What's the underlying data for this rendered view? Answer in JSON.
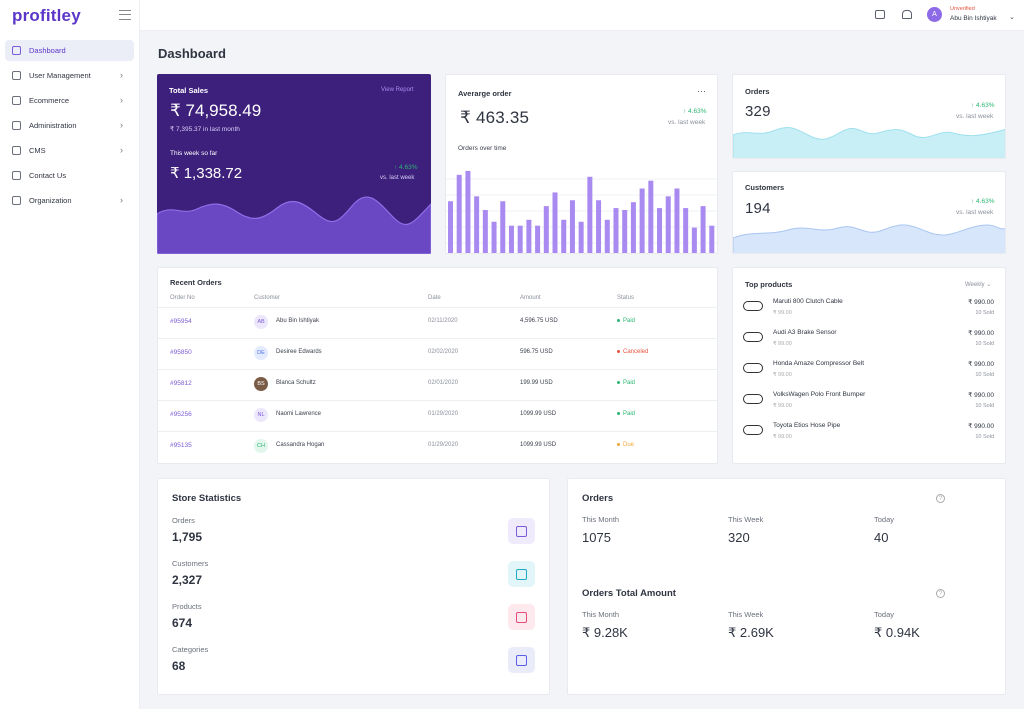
{
  "app": {
    "logo": "profitley"
  },
  "sidebar": {
    "items": [
      {
        "label": "Dashboard",
        "chevron": false
      },
      {
        "label": "User Management",
        "chevron": true
      },
      {
        "label": "Ecommerce",
        "chevron": true
      },
      {
        "label": "Administration",
        "chevron": true
      },
      {
        "label": "CMS",
        "chevron": true
      },
      {
        "label": "Contact Us",
        "chevron": false
      },
      {
        "label": "Organization",
        "chevron": true
      }
    ]
  },
  "user": {
    "initial": "A",
    "status": "Unverified",
    "name": "Abu Bin Ishtiyak"
  },
  "page_title": "Dashboard",
  "total_sales": {
    "title": "Total Sales",
    "link": "View Report",
    "value": "₹ 74,958.49",
    "last_month": "₹ 7,395.37 in last month",
    "week_label": "This week so far",
    "week_value": "₹ 1,338.72",
    "change": "↑ 4.63%",
    "change_label": "vs. last week"
  },
  "avg_order": {
    "title": "Averarge order",
    "value": "₹ 463.35",
    "change": "↑ 4.63%",
    "change_label": "vs. last week",
    "subtitle": "Orders over time",
    "bars": [
      55,
      82,
      86,
      60,
      46,
      34,
      55,
      30,
      30,
      36,
      30,
      50,
      64,
      36,
      56,
      34,
      80,
      56,
      36,
      48,
      46,
      54,
      68,
      76,
      48,
      60,
      68,
      48,
      28,
      50,
      30
    ]
  },
  "orders_card": {
    "title": "Orders",
    "value": "329",
    "change": "↑ 4.63%",
    "change_label": "vs. last week"
  },
  "customers_card": {
    "title": "Customers",
    "value": "194",
    "change": "↑ 4.63%",
    "change_label": "vs. last week"
  },
  "recent_orders": {
    "title": "Recent Orders",
    "headers": [
      "Order No",
      "Customer",
      "Date",
      "Amount",
      "Status"
    ],
    "rows": [
      {
        "id": "#95954",
        "initials": "AB",
        "customer": "Abu Bin Ishtiyak",
        "date": "02/11/2020",
        "amount": "4,596.75 USD",
        "status": "Paid",
        "status_color": "#2bb673",
        "av_bg": "#ece7fb",
        "av_fg": "#7b5bd6"
      },
      {
        "id": "#95850",
        "initials": "DE",
        "customer": "Desiree Edwards",
        "date": "02/02/2020",
        "amount": "596.75 USD",
        "status": "Canceled",
        "status_color": "#e5533d",
        "av_bg": "#e4ebff",
        "av_fg": "#4f74e6"
      },
      {
        "id": "#95812",
        "initials": "BS",
        "customer": "Blanca Schultz",
        "date": "02/01/2020",
        "amount": "199.99 USD",
        "status": "Paid",
        "status_color": "#2bb673",
        "av_bg": "#7a5b46",
        "av_fg": "#fff"
      },
      {
        "id": "#95256",
        "initials": "NL",
        "customer": "Naomi Lawrence",
        "date": "01/29/2020",
        "amount": "1099.99 USD",
        "status": "Paid",
        "status_color": "#2bb673",
        "av_bg": "#ece7fb",
        "av_fg": "#7b5bd6"
      },
      {
        "id": "#95135",
        "initials": "CH",
        "customer": "Cassandra Hogan",
        "date": "01/29/2020",
        "amount": "1099.99 USD",
        "status": "Due",
        "status_color": "#f4a73b",
        "av_bg": "#e3f6ec",
        "av_fg": "#2bb673"
      }
    ]
  },
  "top_products": {
    "title": "Top products",
    "filter": "Weekly",
    "items": [
      {
        "name": "Maruti 800 Clutch Cable",
        "sub": "₹ 99.00",
        "price": "₹ 990.00",
        "sold": "10 Sold"
      },
      {
        "name": "Audi A3 Brake Sensor",
        "sub": "₹ 99.00",
        "price": "₹ 990.00",
        "sold": "10 Sold"
      },
      {
        "name": "Honda Amaze Compressor Belt",
        "sub": "₹ 99.00",
        "price": "₹ 990.00",
        "sold": "10 Sold"
      },
      {
        "name": "VolksWagen Polo Front Bumper",
        "sub": "₹ 99.00",
        "price": "₹ 990.00",
        "sold": "10 Sold"
      },
      {
        "name": "Toyota Etios Hose Pipe",
        "sub": "₹ 99.00",
        "price": "₹ 990.00",
        "sold": "10 Sold"
      }
    ]
  },
  "store_stats": {
    "title": "Store Statistics",
    "items": [
      {
        "label": "Orders",
        "value": "1,795",
        "icon": "bag-icon",
        "bg": "#efeafc",
        "fg": "#7b5bd6"
      },
      {
        "label": "Customers",
        "value": "2,327",
        "icon": "users-icon",
        "bg": "#e2f6fa",
        "fg": "#21a9c9"
      },
      {
        "label": "Products",
        "value": "674",
        "icon": "box-icon",
        "bg": "#fde9ee",
        "fg": "#e64b79"
      },
      {
        "label": "Categories",
        "value": "68",
        "icon": "server-icon",
        "bg": "#ebecfa",
        "fg": "#5b5ee6"
      }
    ]
  },
  "orders_summary": {
    "title": "Orders",
    "cols": [
      {
        "label": "This Month",
        "value": "1075"
      },
      {
        "label": "This Week",
        "value": "320"
      },
      {
        "label": "Today",
        "value": "40"
      }
    ]
  },
  "orders_total": {
    "title": "Orders Total Amount",
    "cols": [
      {
        "label": "This Month",
        "value": "₹  9.28K"
      },
      {
        "label": "This Week",
        "value": "₹  2.69K"
      },
      {
        "label": "Today",
        "value": "₹  0.94K"
      }
    ]
  },
  "colors": {
    "accent": "#5b36c9",
    "bars": "#a98af0",
    "total_sales_bg": "#3d1f7c",
    "orders_wave": "#c9eff6",
    "customers_wave": "#d8e6fb"
  }
}
